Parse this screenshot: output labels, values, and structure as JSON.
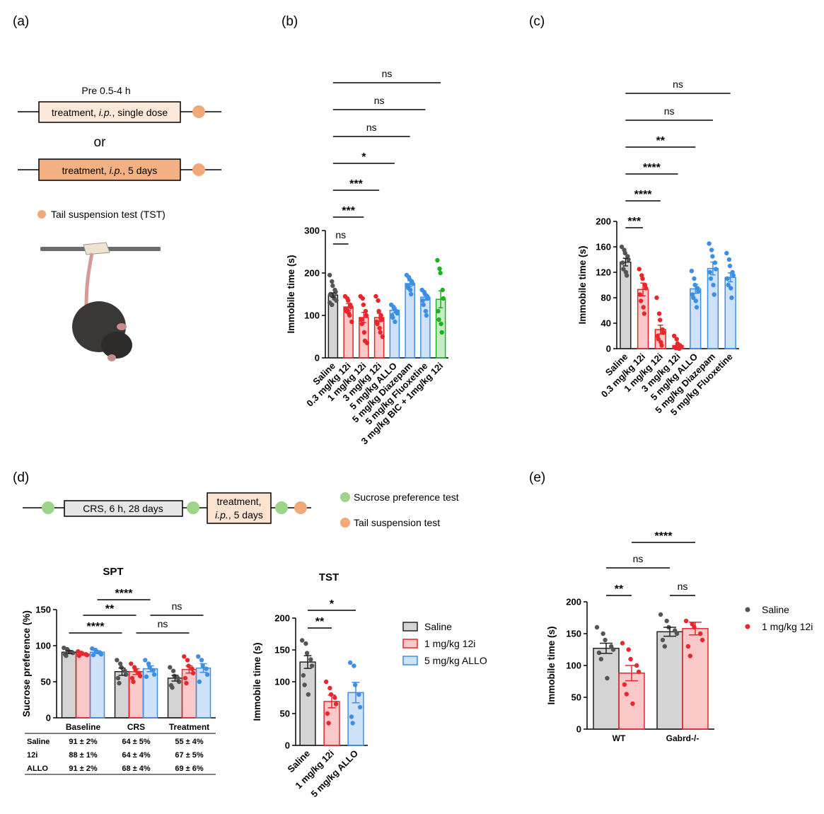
{
  "panel_labels": [
    "(a)",
    "(b)",
    "(c)",
    "(d)",
    "(e)"
  ],
  "diagram_a": {
    "timing": "Pre 0.5-4 h",
    "single": [
      "treatment, ",
      "i.p.",
      ", single dose"
    ],
    "or": "or",
    "repeated": [
      "treatment, ",
      "i.p.",
      ", 5 days"
    ],
    "legend": "Tail suspension test (TST)"
  },
  "diagram_d": {
    "crs": "CRS, 6 h, 28 days",
    "treatment": [
      "treatment,",
      "i.p.",
      ", 5 days"
    ],
    "legend": [
      "Sucrose preference test",
      "Tail suspension test"
    ]
  },
  "spt_table": {
    "rows": [
      {
        "label": "Saline",
        "cells": [
          "91 ± 2%",
          "64 ± 5%",
          "55 ± 4%"
        ]
      },
      {
        "label": "12i",
        "cells": [
          "88 ± 1%",
          "64 ± 4%",
          "67 ± 5%"
        ]
      },
      {
        "label": "ALLO",
        "cells": [
          "91 ± 2%",
          "68 ± 4%",
          "69 ± 6%"
        ]
      }
    ]
  },
  "chart_data": [
    {
      "type": "bar",
      "ylabel": "Immobile time (s)",
      "categories": [
        "Saline",
        "0.3 mg/kg 12i",
        "1 mg/kg 12i",
        "3 mg/kg 12i",
        "5 mg/kg ALLO",
        "5 mg/kg Diazepam",
        "5 mg/kg Fluoxetine",
        "3 mg/kg BIC + 1mg/kg 12i"
      ],
      "ylim": [
        0,
        300
      ],
      "yticks": [
        0,
        100,
        200,
        300
      ],
      "series": [
        {
          "colors": [
            "#555555",
            "#e8262b",
            "#e8262b",
            "#e8262b",
            "#3d8fe6",
            "#3d8fe6",
            "#3d8fe6",
            "#1db31d"
          ],
          "values": [
            148,
            120,
            95,
            95,
            112,
            175,
            143,
            138
          ],
          "errors": [
            5,
            8,
            12,
            10,
            6,
            7,
            7,
            20
          ],
          "points": [
            [
              195,
              180,
              170,
              160,
              155,
              150,
              148,
              145,
              140,
              135,
              130,
              125
            ],
            [
              145,
              140,
              135,
              125,
              120,
              115,
              110,
              105,
              100,
              85
            ],
            [
              145,
              140,
              125,
              110,
              100,
              90,
              80,
              60,
              40,
              35
            ],
            [
              145,
              135,
              110,
              100,
              90,
              85,
              80,
              70,
              60,
              50
            ],
            [
              125,
              120,
              115,
              110,
              105,
              100,
              95,
              85
            ],
            [
              195,
              190,
              185,
              180,
              175,
              170,
              165,
              160,
              150
            ],
            [
              160,
              155,
              150,
              145,
              140,
              135,
              125,
              110,
              100
            ],
            [
              230,
              210,
              200,
              160,
              140,
              110,
              90,
              80,
              60
            ]
          ]
        }
      ],
      "significance": [
        {
          "label": "ns",
          "from": 0,
          "to": 1
        },
        {
          "label": "***",
          "from": 0,
          "to": 2
        },
        {
          "label": "***",
          "from": 0,
          "to": 3
        },
        {
          "label": "*",
          "from": 0,
          "to": 4
        },
        {
          "label": "ns",
          "from": 0,
          "to": 5
        },
        {
          "label": "ns",
          "from": 0,
          "to": 6
        },
        {
          "label": "ns",
          "from": 0,
          "to": 7
        }
      ]
    },
    {
      "type": "bar",
      "ylabel": "Immobile time (s)",
      "categories": [
        "Saline",
        "0.3 mg/kg 12i",
        "1 mg/kg 12i",
        "3 mg/kg 12i",
        "5 mg/kg ALLO",
        "5 mg/kg Diazepam",
        "5 mg/kg Fluoxetine"
      ],
      "ylim": [
        0,
        200
      ],
      "yticks": [
        0,
        40,
        80,
        120,
        160,
        200
      ],
      "series": [
        {
          "colors": [
            "#555555",
            "#e8262b",
            "#e8262b",
            "#e8262b",
            "#3d8fe6",
            "#3d8fe6",
            "#3d8fe6"
          ],
          "values": [
            136,
            93,
            30,
            5,
            94,
            126,
            112
          ],
          "errors": [
            6,
            10,
            7,
            2,
            7,
            10,
            7
          ],
          "points": [
            [
              160,
              155,
              150,
              145,
              140,
              135,
              125,
              120,
              115
            ],
            [
              125,
              115,
              110,
              100,
              95,
              85,
              75,
              65,
              55
            ],
            [
              80,
              55,
              45,
              30,
              25,
              20,
              15,
              10,
              5
            ],
            [
              20,
              15,
              8,
              5,
              3,
              2,
              1,
              1,
              0
            ],
            [
              122,
              110,
              100,
              95,
              90,
              85,
              80,
              75,
              65
            ],
            [
              165,
              155,
              145,
              135,
              125,
              120,
              110,
              100,
              85
            ],
            [
              150,
              140,
              130,
              120,
              115,
              110,
              100,
              95,
              80
            ]
          ]
        }
      ],
      "significance": [
        {
          "label": "***",
          "from": 0,
          "to": 1
        },
        {
          "label": "****",
          "from": 0,
          "to": 2
        },
        {
          "label": "****",
          "from": 0,
          "to": 3
        },
        {
          "label": "**",
          "from": 0,
          "to": 4
        },
        {
          "label": "ns",
          "from": 0,
          "to": 5
        },
        {
          "label": "ns",
          "from": 0,
          "to": 6
        }
      ]
    },
    {
      "type": "bar",
      "title": "SPT",
      "ylabel": "Sucrose preference (%)",
      "categories": [
        "Baseline",
        "CRS",
        "Treatment"
      ],
      "ylim": [
        0,
        150
      ],
      "yticks": [
        0,
        50,
        100,
        150
      ],
      "series": [
        {
          "name": "Saline",
          "color": "#555555",
          "values": [
            91,
            64,
            55
          ],
          "errors": [
            2,
            5,
            4
          ],
          "points": [
            [
              97,
              95,
              93,
              91,
              90,
              88,
              86
            ],
            [
              80,
              75,
              70,
              65,
              60,
              55,
              48
            ],
            [
              70,
              65,
              58,
              55,
              50,
              45,
              42
            ]
          ]
        },
        {
          "name": "1 mg/kg 12i",
          "color": "#e8262b",
          "values": [
            88,
            64,
            67
          ],
          "errors": [
            1,
            4,
            5
          ],
          "points": [
            [
              92,
              90,
              89,
              88,
              87,
              86
            ],
            [
              75,
              70,
              66,
              62,
              58,
              55,
              50
            ],
            [
              85,
              80,
              72,
              68,
              62,
              55,
              48
            ]
          ]
        },
        {
          "name": "5 mg/kg ALLO",
          "color": "#3d8fe6",
          "values": [
            91,
            68,
            69
          ],
          "errors": [
            2,
            4,
            6
          ],
          "points": [
            [
              96,
              94,
              92,
              90,
              88,
              87
            ],
            [
              80,
              75,
              70,
              66,
              60,
              57
            ],
            [
              85,
              80,
              72,
              68,
              60,
              50
            ]
          ]
        }
      ],
      "significance": [
        {
          "label": "****",
          "from": [
            0,
            0
          ],
          "to": [
            1,
            0
          ]
        },
        {
          "label": "**",
          "from": [
            0,
            1
          ],
          "to": [
            1,
            1
          ]
        },
        {
          "label": "****",
          "from": [
            0,
            2
          ],
          "to": [
            1,
            2
          ]
        },
        {
          "label": "ns",
          "from": [
            1,
            1
          ],
          "to": [
            2,
            1
          ]
        },
        {
          "label": "ns",
          "from": [
            1,
            2
          ],
          "to": [
            2,
            2
          ]
        }
      ]
    },
    {
      "type": "bar",
      "title": "TST",
      "ylabel": "Immobile time (s)",
      "categories": [
        "Saline",
        "1 mg/kg 12i",
        "5 mg/kg ALLO"
      ],
      "ylim": [
        0,
        200
      ],
      "yticks": [
        0,
        50,
        100,
        150,
        200
      ],
      "series": [
        {
          "colors": [
            "#555555",
            "#e8262b",
            "#3d8fe6"
          ],
          "values": [
            131,
            69,
            83
          ],
          "errors": [
            10,
            10,
            16
          ],
          "points": [
            [
              165,
              160,
              145,
              135,
              125,
              110,
              95,
              80
            ],
            [
              100,
              90,
              80,
              75,
              65,
              50,
              35
            ],
            [
              130,
              125,
              95,
              80,
              60,
              45,
              35
            ]
          ]
        }
      ],
      "significance": [
        {
          "label": "**",
          "from": 0,
          "to": 1
        },
        {
          "label": "*",
          "from": 0,
          "to": 2
        }
      ]
    },
    {
      "type": "bar",
      "ylabel": "Immobile time (s)",
      "categories": [
        "WT",
        "Gabrd-/-"
      ],
      "ylim": [
        0,
        200
      ],
      "yticks": [
        0,
        50,
        100,
        150,
        200
      ],
      "series": [
        {
          "name": "Saline",
          "color": "#555555",
          "values": [
            127,
            153
          ],
          "errors": [
            8,
            7
          ],
          "points": [
            [
              160,
              150,
              140,
              130,
              125,
              120,
              110,
              80
            ],
            [
              180,
              170,
              160,
              155,
              150,
              140,
              130
            ]
          ]
        },
        {
          "name": "1 mg/kg 12i",
          "color": "#e8262b",
          "values": [
            88,
            158
          ],
          "errors": [
            12,
            10
          ],
          "points": [
            [
              135,
              125,
              110,
              100,
              90,
              70,
              55,
              40
            ],
            [
              170,
              165,
              160,
              150,
              140,
              130,
              115
            ]
          ]
        }
      ],
      "significance": [
        {
          "label": "**",
          "from": [
            0,
            0
          ],
          "to": [
            0,
            1
          ]
        },
        {
          "label": "ns",
          "from": [
            1,
            0
          ],
          "to": [
            1,
            1
          ]
        },
        {
          "label": "ns",
          "from": [
            0,
            0
          ],
          "to": [
            1,
            0
          ]
        },
        {
          "label": "****",
          "from": [
            0,
            1
          ],
          "to": [
            1,
            1
          ]
        }
      ]
    }
  ]
}
